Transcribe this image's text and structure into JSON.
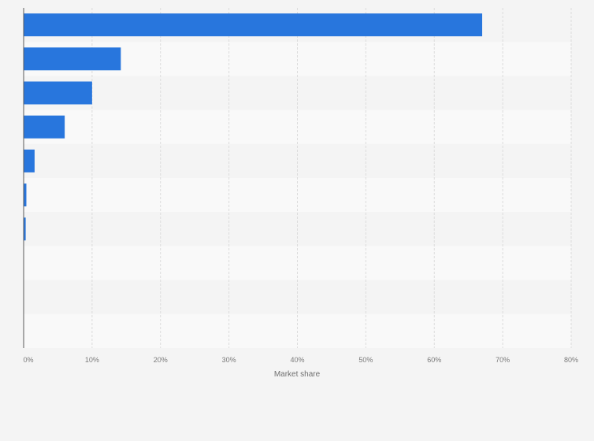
{
  "chart_data": {
    "type": "bar",
    "orientation": "horizontal",
    "categories": [
      "",
      "",
      "",
      "",
      "",
      "",
      "",
      "",
      "",
      ""
    ],
    "values": [
      67.0,
      14.2,
      10.0,
      6.0,
      1.6,
      0.4,
      0.3,
      0,
      0,
      0
    ],
    "xlabel": "Market share",
    "ylabel": "",
    "xlim": [
      0,
      80
    ],
    "x_ticks": [
      0,
      10,
      20,
      30,
      40,
      50,
      60,
      70,
      80
    ],
    "x_tick_labels": [
      "0%",
      "10%",
      "20%",
      "30%",
      "40%",
      "50%",
      "60%",
      "70%",
      "80%"
    ],
    "grid": "vertical",
    "bar_color": "#2876dd",
    "row_band_colors": [
      "#f4f4f4",
      "#f9f9f9"
    ],
    "gridline_color": "#dcdcdc",
    "axis_color": "#5a5a5a",
    "tick_text_color": "#7a7a7a"
  }
}
